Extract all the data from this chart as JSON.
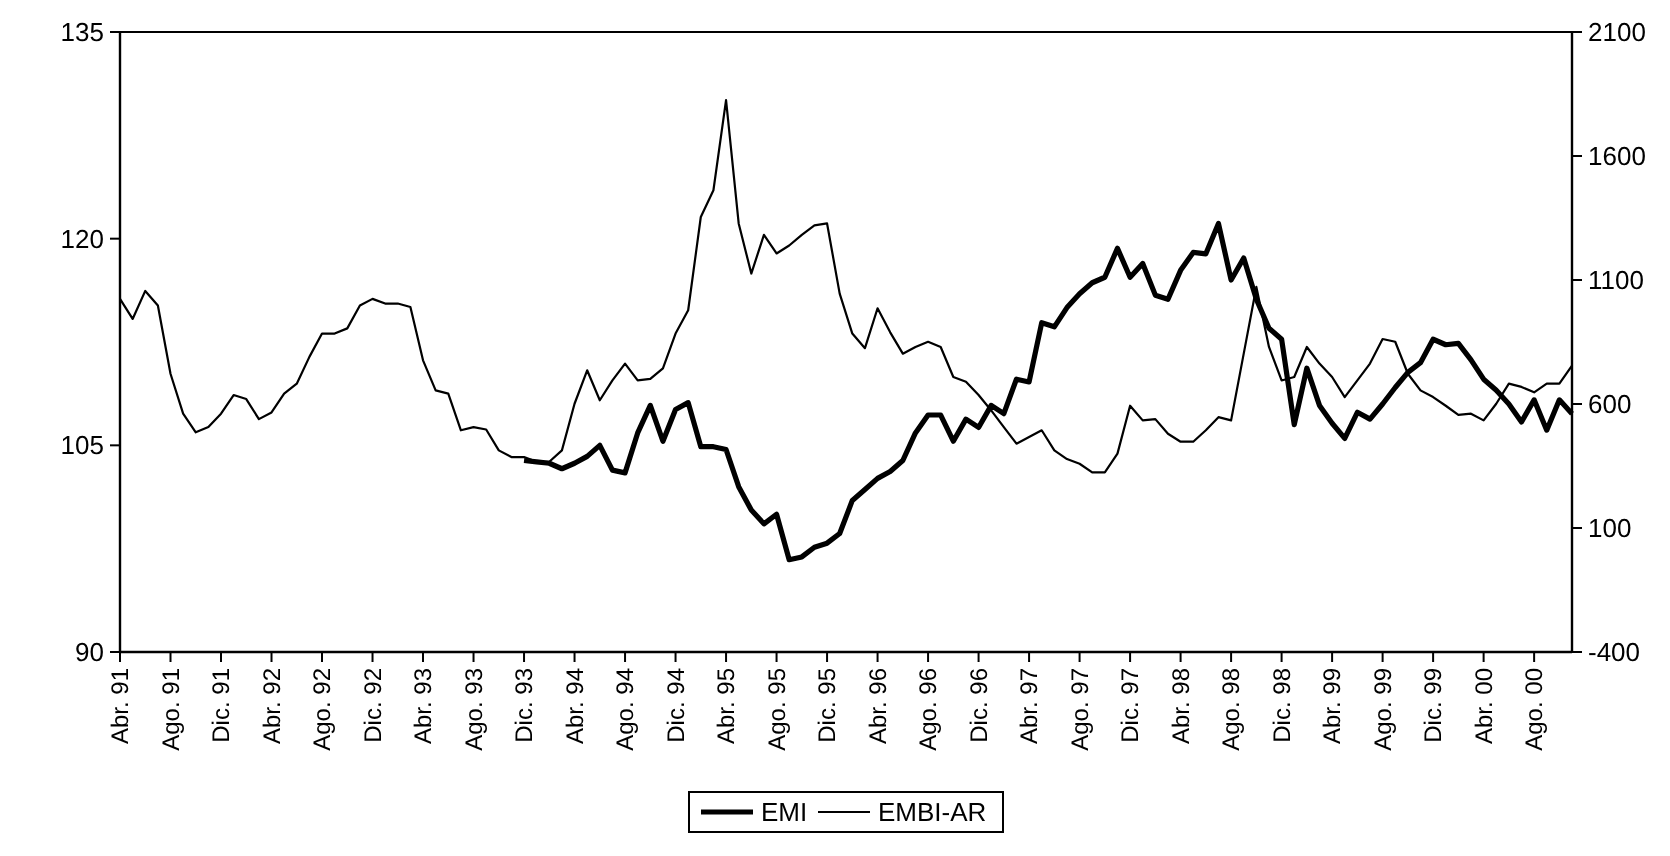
{
  "chart_data": {
    "type": "line",
    "categories": [
      "Abr. 91",
      null,
      null,
      null,
      "Ago. 91",
      null,
      null,
      null,
      "Dic. 91",
      null,
      null,
      null,
      "Abr. 92",
      null,
      null,
      null,
      "Ago. 92",
      null,
      null,
      null,
      "Dic. 92",
      null,
      null,
      null,
      "Abr. 93",
      null,
      null,
      null,
      "Ago. 93",
      null,
      null,
      null,
      "Dic. 93",
      null,
      null,
      null,
      "Abr. 94",
      null,
      null,
      null,
      "Ago. 94",
      null,
      null,
      null,
      "Dic. 94",
      null,
      null,
      null,
      "Abr. 95",
      null,
      null,
      null,
      "Ago. 95",
      null,
      null,
      null,
      "Dic. 95",
      null,
      null,
      null,
      "Abr. 96",
      null,
      null,
      null,
      "Ago. 96",
      null,
      null,
      null,
      "Dic. 96",
      null,
      null,
      null,
      "Abr. 97",
      null,
      null,
      null,
      "Ago. 97",
      null,
      null,
      null,
      "Dic. 97",
      null,
      null,
      null,
      "Abr. 98",
      null,
      null,
      null,
      "Ago. 98",
      null,
      null,
      null,
      "Dic. 98",
      null,
      null,
      null,
      "Abr. 99",
      null,
      null,
      null,
      "Ago. 99",
      null,
      null,
      null,
      "Dic. 99",
      null,
      null,
      null,
      "Abr. 00",
      null,
      null,
      null,
      "Ago. 00",
      null,
      null,
      null
    ],
    "series": [
      {
        "name": "EMI",
        "color": "#000000",
        "axis": "y",
        "values": [
          null,
          null,
          null,
          null,
          null,
          null,
          null,
          null,
          null,
          null,
          null,
          null,
          null,
          null,
          null,
          null,
          null,
          null,
          null,
          null,
          null,
          null,
          null,
          null,
          null,
          null,
          null,
          null,
          null,
          null,
          null,
          null,
          103.9,
          103.8,
          103.7,
          103.3,
          103.7,
          104.2,
          105.0,
          103.2,
          103.0,
          105.9,
          107.9,
          105.3,
          107.6,
          108.1,
          104.9,
          104.9,
          104.7,
          102.0,
          100.3,
          99.3,
          100.0,
          96.7,
          96.9,
          97.6,
          97.9,
          98.6,
          101.0,
          101.8,
          102.6,
          103.1,
          103.9,
          105.9,
          107.2,
          107.2,
          105.3,
          106.9,
          106.3,
          107.9,
          107.3,
          109.8,
          109.6,
          113.9,
          113.6,
          115.0,
          116.0,
          116.8,
          117.2,
          119.3,
          117.2,
          118.2,
          115.9,
          115.6,
          117.7,
          119.0,
          118.9,
          121.1,
          117.0,
          118.6,
          115.6,
          113.5,
          112.7,
          106.5,
          110.6,
          107.9,
          106.6,
          105.5,
          107.4,
          106.9,
          108.0,
          109.2,
          110.3,
          111.0,
          112.7,
          112.3,
          112.4,
          111.2,
          109.8,
          109.0,
          108.0,
          106.7,
          108.3,
          106.1,
          108.3,
          107.3
        ]
      },
      {
        "name": "EMBI-AR",
        "color": "#000000",
        "axis": "y2",
        "values": [
          1024,
          943,
          1056,
          997,
          722,
          561,
          486,
          507,
          561,
          636,
          620,
          539,
          566,
          642,
          682,
          790,
          884,
          884,
          905,
          997,
          1024,
          1005,
          1005,
          991,
          776,
          655,
          642,
          494,
          507,
          497,
          413,
          386,
          386,
          367,
          367,
          413,
          601,
          736,
          615,
          695,
          763,
          695,
          701,
          744,
          884,
          978,
          1354,
          1462,
          1825,
          1328,
          1126,
          1282,
          1207,
          1239,
          1282,
          1320,
          1328,
          1045,
          884,
          825,
          986,
          889,
          803,
          830,
          851,
          830,
          709,
          690,
          636,
          574,
          507,
          440,
          467,
          494,
          413,
          378,
          359,
          324,
          324,
          400,
          593,
          534,
          539,
          480,
          448,
          448,
          494,
          547,
          534,
          803,
          1072,
          830,
          695,
          709,
          830,
          763,
          709,
          628,
          695,
          763,
          862,
          851,
          722,
          655,
          628,
          593,
          556,
          561,
          534,
          601,
          682,
          669,
          647,
          682,
          682,
          755
        ]
      }
    ],
    "ylim": [
      90,
      135
    ],
    "yticks": [
      90,
      105,
      120,
      135
    ],
    "y2lim": [
      -400,
      2100
    ],
    "y2ticks": [
      -400,
      100,
      600,
      1100,
      1600,
      2100
    ],
    "grid": false,
    "legend": "bottom"
  }
}
